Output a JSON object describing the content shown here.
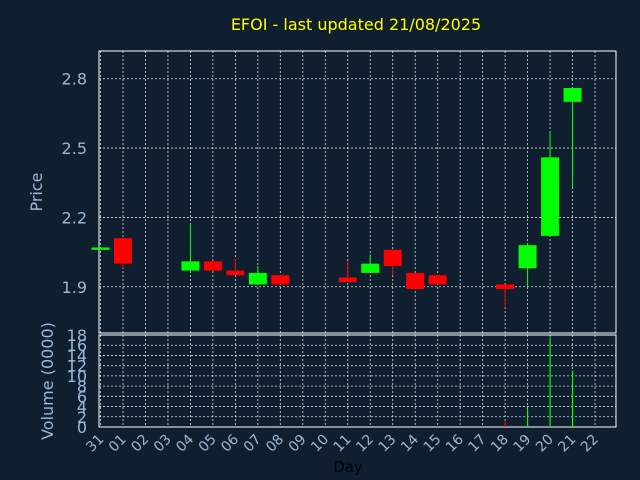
{
  "chart_data": {
    "type": "candlestick",
    "title": "EFOI - last updated 21/08/2025",
    "price_panel": {
      "ylabel": "Price",
      "ylim": [
        1.7,
        2.92
      ],
      "yticks": [
        "1.9",
        "2.2",
        "2.5",
        "2.8"
      ],
      "ytick_values": [
        1.9,
        2.2,
        2.5,
        2.8
      ],
      "up_color": "#00ff00",
      "down_color": "#ff0000"
    },
    "volume_panel": {
      "ylabel": "Volume (0000)",
      "ylim": [
        0,
        18
      ],
      "yticks": [
        "0",
        "2",
        "4",
        "6",
        "8",
        "10",
        "12",
        "14",
        "16",
        "18"
      ],
      "ytick_values": [
        0,
        2,
        4,
        6,
        8,
        10,
        12,
        14,
        16,
        18
      ]
    },
    "xlabel": "Day",
    "categories": [
      "31",
      "01",
      "02",
      "03",
      "04",
      "05",
      "06",
      "07",
      "08",
      "09",
      "10",
      "11",
      "12",
      "13",
      "14",
      "15",
      "16",
      "17",
      "18",
      "19",
      "20",
      "21",
      "22"
    ],
    "candles": [
      {
        "i": 0,
        "open": 2.06,
        "close": 2.07,
        "high": 2.07,
        "low": 2.06,
        "volume": 0
      },
      {
        "i": 1,
        "open": 2.11,
        "close": 2.0,
        "high": 2.11,
        "low": 1.98,
        "volume": 0
      },
      {
        "i": 4,
        "open": 1.97,
        "close": 2.01,
        "high": 2.17,
        "low": 1.97,
        "volume": 0
      },
      {
        "i": 5,
        "open": 2.01,
        "close": 1.97,
        "high": 2.01,
        "low": 1.97,
        "volume": 0
      },
      {
        "i": 6,
        "open": 1.97,
        "close": 1.95,
        "high": 2.02,
        "low": 1.95,
        "volume": 0
      },
      {
        "i": 7,
        "open": 1.91,
        "close": 1.96,
        "high": 1.99,
        "low": 1.91,
        "volume": 0
      },
      {
        "i": 8,
        "open": 1.95,
        "close": 1.91,
        "high": 1.95,
        "low": 1.91,
        "volume": 0
      },
      {
        "i": 11,
        "open": 1.94,
        "close": 1.92,
        "high": 2.01,
        "low": 1.92,
        "volume": 0
      },
      {
        "i": 12,
        "open": 1.96,
        "close": 2.0,
        "high": 2.04,
        "low": 1.96,
        "volume": 0
      },
      {
        "i": 13,
        "open": 2.06,
        "close": 1.99,
        "high": 2.06,
        "low": 1.95,
        "volume": 0
      },
      {
        "i": 14,
        "open": 1.96,
        "close": 1.89,
        "high": 1.96,
        "low": 1.89,
        "volume": 0
      },
      {
        "i": 15,
        "open": 1.95,
        "close": 1.91,
        "high": 1.95,
        "low": 1.91,
        "volume": 0
      },
      {
        "i": 18,
        "open": 1.91,
        "close": 1.89,
        "high": 1.91,
        "low": 1.81,
        "volume": 1
      },
      {
        "i": 19,
        "open": 1.98,
        "close": 2.08,
        "high": 2.09,
        "low": 1.9,
        "volume": 3.5
      },
      {
        "i": 20,
        "open": 2.12,
        "close": 2.46,
        "high": 2.57,
        "low": 2.12,
        "volume": 17.5
      },
      {
        "i": 21,
        "open": 2.7,
        "close": 2.76,
        "high": 2.76,
        "low": 2.33,
        "volume": 11
      }
    ]
  }
}
